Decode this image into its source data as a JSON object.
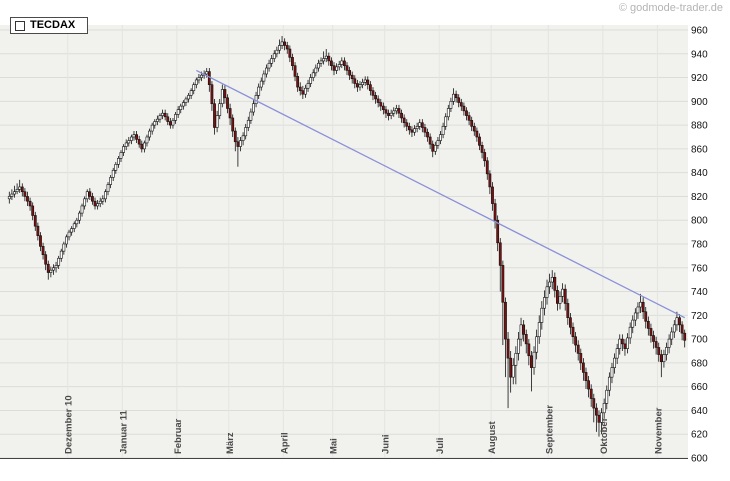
{
  "header": {
    "copyright": "© godmode-trader.de"
  },
  "legend": {
    "label": "TECDAX"
  },
  "chart_data": {
    "type": "candlestick",
    "title": "TECDAX",
    "xlabel": "",
    "ylabel": "",
    "y_axis": {
      "min": 600,
      "max": 960,
      "tick_step": 20,
      "ticks": [
        960,
        940,
        920,
        900,
        880,
        860,
        840,
        820,
        800,
        780,
        760,
        740,
        720,
        700,
        680,
        660,
        640,
        620,
        600
      ]
    },
    "x_axis": {
      "unit": "month",
      "months": [
        {
          "label": "Dezember 10",
          "index": 23
        },
        {
          "label": "Januar 11",
          "index": 44
        },
        {
          "label": "Februar",
          "index": 65
        },
        {
          "label": "März",
          "index": 85
        },
        {
          "label": "April",
          "index": 106
        },
        {
          "label": "Mai",
          "index": 125
        },
        {
          "label": "Juni",
          "index": 145
        },
        {
          "label": "Juli",
          "index": 166
        },
        {
          "label": "August",
          "index": 186
        },
        {
          "label": "September",
          "index": 208
        },
        {
          "label": "Oktober",
          "index": 229
        },
        {
          "label": "November",
          "index": 250
        }
      ]
    },
    "colors": {
      "plot_bg": "#f1f1ee",
      "grid": "#dcdcd8",
      "month_grid": "#e4e4e0",
      "stroke": "#111111",
      "up_fill": "#ffffff",
      "down_fill": "#7a1010",
      "axis_text": "#111111",
      "month_text": "#4a4a4a"
    },
    "trendline": {
      "from": {
        "index": 72,
        "price": 926
      },
      "to": {
        "index": 260,
        "price": 718
      },
      "color": "#8a90d8"
    },
    "candles": [
      [
        818,
        824,
        814,
        820
      ],
      [
        820,
        826,
        817,
        822
      ],
      [
        822,
        829,
        819,
        824
      ],
      [
        824,
        831,
        822,
        826
      ],
      [
        826,
        834,
        823,
        828
      ],
      [
        828,
        831,
        820,
        824
      ],
      [
        824,
        827,
        816,
        820
      ],
      [
        820,
        824,
        812,
        816
      ],
      [
        816,
        819,
        808,
        812
      ],
      [
        812,
        815,
        800,
        804
      ],
      [
        804,
        807,
        791,
        795
      ],
      [
        795,
        798,
        783,
        787
      ],
      [
        787,
        790,
        774,
        778
      ],
      [
        778,
        781,
        767,
        771
      ],
      [
        771,
        774,
        758,
        763
      ],
      [
        763,
        766,
        750,
        756
      ],
      [
        756,
        761,
        752,
        758
      ],
      [
        758,
        763,
        754,
        760
      ],
      [
        760,
        765,
        756,
        762
      ],
      [
        762,
        770,
        759,
        768
      ],
      [
        768,
        776,
        765,
        774
      ],
      [
        774,
        782,
        771,
        780
      ],
      [
        780,
        788,
        777,
        786
      ],
      [
        786,
        792,
        783,
        790
      ],
      [
        790,
        795,
        787,
        793
      ],
      [
        793,
        799,
        790,
        797
      ],
      [
        797,
        802,
        794,
        800
      ],
      [
        800,
        808,
        797,
        806
      ],
      [
        806,
        814,
        803,
        812
      ],
      [
        812,
        820,
        809,
        818
      ],
      [
        818,
        826,
        815,
        824
      ],
      [
        824,
        827,
        817,
        820
      ],
      [
        820,
        823,
        813,
        816
      ],
      [
        816,
        819,
        809,
        812
      ],
      [
        812,
        817,
        809,
        814
      ],
      [
        814,
        819,
        811,
        816
      ],
      [
        816,
        821,
        813,
        818
      ],
      [
        818,
        826,
        815,
        824
      ],
      [
        824,
        832,
        821,
        830
      ],
      [
        830,
        838,
        827,
        836
      ],
      [
        836,
        844,
        833,
        842
      ],
      [
        842,
        849,
        839,
        847
      ],
      [
        847,
        854,
        844,
        852
      ],
      [
        852,
        859,
        849,
        857
      ],
      [
        857,
        864,
        854,
        862
      ],
      [
        862,
        868,
        859,
        865
      ],
      [
        865,
        870,
        862,
        867
      ],
      [
        867,
        872,
        864,
        870
      ],
      [
        870,
        875,
        867,
        872
      ],
      [
        872,
        875,
        865,
        868
      ],
      [
        868,
        871,
        861,
        864
      ],
      [
        864,
        867,
        857,
        860
      ],
      [
        860,
        867,
        857,
        865
      ],
      [
        865,
        872,
        862,
        870
      ],
      [
        870,
        877,
        867,
        875
      ],
      [
        875,
        882,
        872,
        880
      ],
      [
        880,
        885,
        877,
        883
      ],
      [
        883,
        888,
        880,
        885
      ],
      [
        885,
        890,
        882,
        888
      ],
      [
        888,
        893,
        885,
        890
      ],
      [
        890,
        893,
        884,
        887
      ],
      [
        887,
        890,
        880,
        883
      ],
      [
        883,
        886,
        877,
        880
      ],
      [
        880,
        886,
        877,
        884
      ],
      [
        884,
        891,
        881,
        889
      ],
      [
        889,
        896,
        886,
        893
      ],
      [
        893,
        898,
        890,
        896
      ],
      [
        896,
        901,
        893,
        899
      ],
      [
        899,
        904,
        896,
        902
      ],
      [
        902,
        907,
        899,
        905
      ],
      [
        905,
        911,
        902,
        909
      ],
      [
        909,
        916,
        906,
        914
      ],
      [
        914,
        920,
        911,
        918
      ],
      [
        918,
        923,
        915,
        920
      ],
      [
        920,
        925,
        917,
        922
      ],
      [
        922,
        926,
        919,
        923
      ],
      [
        923,
        928,
        920,
        925
      ],
      [
        925,
        928,
        908,
        914
      ],
      [
        914,
        917,
        892,
        898
      ],
      [
        898,
        902,
        872,
        878
      ],
      [
        878,
        892,
        874,
        888
      ],
      [
        888,
        902,
        885,
        898
      ],
      [
        898,
        914,
        895,
        910
      ],
      [
        910,
        914,
        898,
        903
      ],
      [
        903,
        906,
        890,
        894
      ],
      [
        894,
        898,
        880,
        886
      ],
      [
        886,
        889,
        870,
        875
      ],
      [
        875,
        878,
        858,
        866
      ],
      [
        866,
        870,
        845,
        862
      ],
      [
        862,
        870,
        858,
        867
      ],
      [
        867,
        874,
        863,
        871
      ],
      [
        871,
        881,
        868,
        878
      ],
      [
        878,
        887,
        875,
        884
      ],
      [
        884,
        894,
        881,
        891
      ],
      [
        891,
        901,
        888,
        898
      ],
      [
        898,
        908,
        895,
        905
      ],
      [
        905,
        915,
        902,
        912
      ],
      [
        912,
        920,
        909,
        917
      ],
      [
        917,
        926,
        914,
        923
      ],
      [
        923,
        931,
        920,
        928
      ],
      [
        928,
        935,
        925,
        932
      ],
      [
        932,
        939,
        929,
        936
      ],
      [
        936,
        943,
        933,
        940
      ],
      [
        940,
        946,
        937,
        943
      ],
      [
        943,
        952,
        940,
        947
      ],
      [
        947,
        955,
        944,
        950
      ],
      [
        950,
        953,
        943,
        947
      ],
      [
        947,
        950,
        940,
        944
      ],
      [
        944,
        947,
        933,
        937
      ],
      [
        937,
        940,
        926,
        930
      ],
      [
        930,
        933,
        917,
        921
      ],
      [
        921,
        924,
        908,
        912
      ],
      [
        912,
        916,
        905,
        909
      ],
      [
        909,
        913,
        902,
        906
      ],
      [
        906,
        914,
        903,
        911
      ],
      [
        911,
        918,
        908,
        915
      ],
      [
        915,
        923,
        912,
        920
      ],
      [
        920,
        927,
        917,
        924
      ],
      [
        924,
        931,
        921,
        928
      ],
      [
        928,
        935,
        925,
        932
      ],
      [
        932,
        937,
        929,
        934
      ],
      [
        934,
        942,
        931,
        936
      ],
      [
        936,
        944,
        933,
        938
      ],
      [
        938,
        941,
        930,
        934
      ],
      [
        934,
        937,
        926,
        930
      ],
      [
        930,
        933,
        922,
        926
      ],
      [
        926,
        932,
        923,
        929
      ],
      [
        929,
        934,
        926,
        931
      ],
      [
        931,
        937,
        928,
        934
      ],
      [
        934,
        937,
        926,
        930
      ],
      [
        930,
        933,
        922,
        926
      ],
      [
        926,
        929,
        918,
        922
      ],
      [
        922,
        925,
        915,
        919
      ],
      [
        919,
        922,
        911,
        915
      ],
      [
        915,
        918,
        908,
        912
      ],
      [
        912,
        917,
        909,
        914
      ],
      [
        914,
        919,
        911,
        916
      ],
      [
        916,
        921,
        913,
        918
      ],
      [
        918,
        921,
        910,
        914
      ],
      [
        914,
        917,
        905,
        909
      ],
      [
        909,
        912,
        901,
        905
      ],
      [
        905,
        908,
        898,
        902
      ],
      [
        902,
        905,
        895,
        899
      ],
      [
        899,
        902,
        892,
        896
      ],
      [
        896,
        899,
        889,
        893
      ],
      [
        893,
        896,
        886,
        890
      ],
      [
        890,
        893,
        884,
        888
      ],
      [
        888,
        893,
        885,
        890
      ],
      [
        890,
        895,
        887,
        892
      ],
      [
        892,
        897,
        889,
        894
      ],
      [
        894,
        897,
        886,
        890
      ],
      [
        890,
        893,
        882,
        886
      ],
      [
        886,
        889,
        878,
        882
      ],
      [
        882,
        885,
        875,
        879
      ],
      [
        879,
        882,
        872,
        876
      ],
      [
        876,
        879,
        870,
        874
      ],
      [
        874,
        880,
        871,
        877
      ],
      [
        877,
        882,
        874,
        879
      ],
      [
        879,
        885,
        876,
        882
      ],
      [
        882,
        885,
        874,
        878
      ],
      [
        878,
        881,
        870,
        874
      ],
      [
        874,
        877,
        866,
        870
      ],
      [
        870,
        873,
        860,
        864
      ],
      [
        864,
        867,
        853,
        858
      ],
      [
        858,
        866,
        855,
        863
      ],
      [
        863,
        870,
        860,
        867
      ],
      [
        867,
        875,
        864,
        872
      ],
      [
        872,
        882,
        869,
        879
      ],
      [
        879,
        890,
        876,
        887
      ],
      [
        887,
        897,
        884,
        894
      ],
      [
        894,
        903,
        891,
        900
      ],
      [
        900,
        911,
        897,
        906
      ],
      [
        906,
        909,
        899,
        903
      ],
      [
        903,
        906,
        895,
        899
      ],
      [
        899,
        902,
        892,
        896
      ],
      [
        896,
        899,
        888,
        892
      ],
      [
        892,
        895,
        884,
        888
      ],
      [
        888,
        891,
        880,
        884
      ],
      [
        884,
        887,
        875,
        879
      ],
      [
        879,
        882,
        871,
        875
      ],
      [
        875,
        878,
        866,
        870
      ],
      [
        870,
        873,
        859,
        863
      ],
      [
        863,
        866,
        852,
        857
      ],
      [
        857,
        860,
        845,
        850
      ],
      [
        850,
        853,
        834,
        839
      ],
      [
        839,
        842,
        822,
        828
      ],
      [
        828,
        832,
        808,
        814
      ],
      [
        814,
        818,
        793,
        800
      ],
      [
        800,
        804,
        774,
        781
      ],
      [
        781,
        785,
        740,
        762
      ],
      [
        762,
        766,
        695,
        731
      ],
      [
        731,
        735,
        668,
        700
      ],
      [
        700,
        706,
        642,
        684
      ],
      [
        684,
        690,
        655,
        668
      ],
      [
        668,
        684,
        662,
        678
      ],
      [
        678,
        694,
        662,
        688
      ],
      [
        688,
        706,
        682,
        700
      ],
      [
        700,
        718,
        694,
        712
      ],
      [
        712,
        716,
        698,
        704
      ],
      [
        704,
        708,
        688,
        696
      ],
      [
        696,
        700,
        678,
        686
      ],
      [
        686,
        690,
        656,
        676
      ],
      [
        676,
        694,
        670,
        689
      ],
      [
        689,
        708,
        683,
        702
      ],
      [
        702,
        720,
        696,
        714
      ],
      [
        714,
        732,
        708,
        726
      ],
      [
        726,
        741,
        720,
        735
      ],
      [
        735,
        750,
        729,
        744
      ],
      [
        744,
        755,
        738,
        748
      ],
      [
        748,
        758,
        742,
        752
      ],
      [
        752,
        756,
        735,
        741
      ],
      [
        741,
        745,
        724,
        730
      ],
      [
        730,
        740,
        725,
        736
      ],
      [
        736,
        747,
        731,
        742
      ],
      [
        742,
        746,
        724,
        730
      ],
      [
        730,
        734,
        712,
        718
      ],
      [
        718,
        722,
        704,
        710
      ],
      [
        710,
        714,
        696,
        702
      ],
      [
        702,
        706,
        689,
        695
      ],
      [
        695,
        699,
        682,
        688
      ],
      [
        688,
        692,
        674,
        680
      ],
      [
        680,
        684,
        665,
        672
      ],
      [
        672,
        676,
        658,
        665
      ],
      [
        665,
        669,
        651,
        658
      ],
      [
        658,
        662,
        643,
        650
      ],
      [
        650,
        654,
        630,
        642
      ],
      [
        642,
        646,
        622,
        636
      ],
      [
        636,
        640,
        618,
        630
      ],
      [
        630,
        642,
        620,
        638
      ],
      [
        638,
        650,
        633,
        646
      ],
      [
        646,
        661,
        641,
        657
      ],
      [
        657,
        672,
        652,
        668
      ],
      [
        668,
        680,
        663,
        676
      ],
      [
        676,
        688,
        671,
        684
      ],
      [
        684,
        696,
        679,
        692
      ],
      [
        692,
        704,
        687,
        700
      ],
      [
        700,
        704,
        690,
        696
      ],
      [
        696,
        700,
        686,
        692
      ],
      [
        692,
        705,
        688,
        701
      ],
      [
        701,
        714,
        696,
        710
      ],
      [
        710,
        720,
        705,
        716
      ],
      [
        716,
        726,
        711,
        722
      ],
      [
        722,
        731,
        717,
        727
      ],
      [
        727,
        738,
        722,
        731
      ],
      [
        731,
        735,
        717,
        723
      ],
      [
        723,
        727,
        709,
        715
      ],
      [
        715,
        719,
        703,
        709
      ],
      [
        709,
        713,
        697,
        703
      ],
      [
        703,
        707,
        692,
        698
      ],
      [
        698,
        702,
        687,
        693
      ],
      [
        693,
        697,
        681,
        687
      ],
      [
        687,
        691,
        668,
        681
      ],
      [
        681,
        691,
        676,
        687
      ],
      [
        687,
        697,
        682,
        693
      ],
      [
        693,
        704,
        688,
        700
      ],
      [
        700,
        710,
        695,
        706
      ],
      [
        706,
        716,
        701,
        712
      ],
      [
        712,
        723,
        707,
        718
      ],
      [
        718,
        721,
        706,
        712
      ],
      [
        712,
        715,
        699,
        705
      ],
      [
        705,
        708,
        693,
        699
      ]
    ]
  }
}
